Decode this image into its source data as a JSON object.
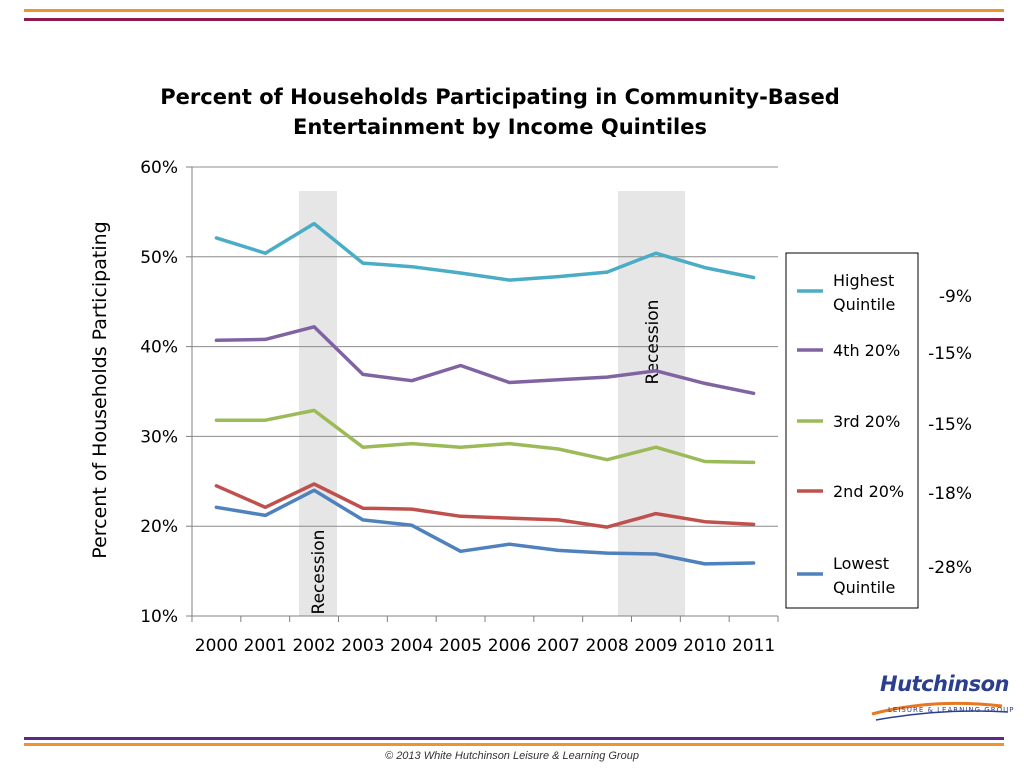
{
  "colors": {
    "orange": "#f0932f",
    "maroon": "#8b1a4d",
    "purple": "#5b2a86",
    "recession_shade": "#e6e6e6",
    "gridline": "#8c8c8c"
  },
  "chart_data": {
    "type": "line",
    "title": "Percent of Households Participating in Community-Based Entertainment by Income Quintiles",
    "ylabel": "Percent of Households Participating",
    "xlabel": "",
    "x": [
      "2000",
      "2001",
      "2002",
      "2003",
      "2004",
      "2005",
      "2006",
      "2007",
      "2008",
      "2009",
      "2010",
      "2011"
    ],
    "ylim": [
      10,
      60
    ],
    "yticks": [
      "10%",
      "20%",
      "30%",
      "40%",
      "50%",
      "60%"
    ],
    "grid": true,
    "legend_position": "right",
    "recession_periods": [
      {
        "label": "Recession",
        "start": "2002",
        "end": "2002"
      },
      {
        "label": "Recession",
        "start": "2008",
        "end": "2009"
      }
    ],
    "series": [
      {
        "name": "Highest Quintile",
        "color": "#4bacc6",
        "change": "-9%",
        "values": [
          52.1,
          50.4,
          53.7,
          49.3,
          48.9,
          48.2,
          47.4,
          47.8,
          48.3,
          50.4,
          48.8,
          47.7
        ]
      },
      {
        "name": "4th 20%",
        "color": "#8064a2",
        "change": "-15%",
        "values": [
          40.7,
          40.8,
          42.2,
          36.9,
          36.2,
          37.9,
          36.0,
          36.3,
          36.6,
          37.3,
          35.9,
          34.8
        ]
      },
      {
        "name": "3rd 20%",
        "color": "#9bbb59",
        "change": "-15%",
        "values": [
          31.8,
          31.8,
          32.9,
          28.8,
          29.2,
          28.8,
          29.2,
          28.6,
          27.4,
          28.8,
          27.2,
          27.1
        ]
      },
      {
        "name": "2nd 20%",
        "color": "#c0504d",
        "change": "-18%",
        "values": [
          24.5,
          22.1,
          24.7,
          22.0,
          21.9,
          21.1,
          20.9,
          20.7,
          19.9,
          21.4,
          20.5,
          20.2
        ]
      },
      {
        "name": "Lowest Quintile",
        "color": "#4f81bd",
        "change": "-28%",
        "values": [
          22.1,
          21.2,
          24.0,
          20.7,
          20.1,
          17.2,
          18.0,
          17.3,
          17.0,
          16.9,
          15.8,
          15.9
        ]
      }
    ]
  },
  "logo": {
    "name": "Hutchinson",
    "tagline": "LEISURE & LEARNING GROUP"
  },
  "footer": "© 2013 White Hutchinson Leisure & Learning Group"
}
